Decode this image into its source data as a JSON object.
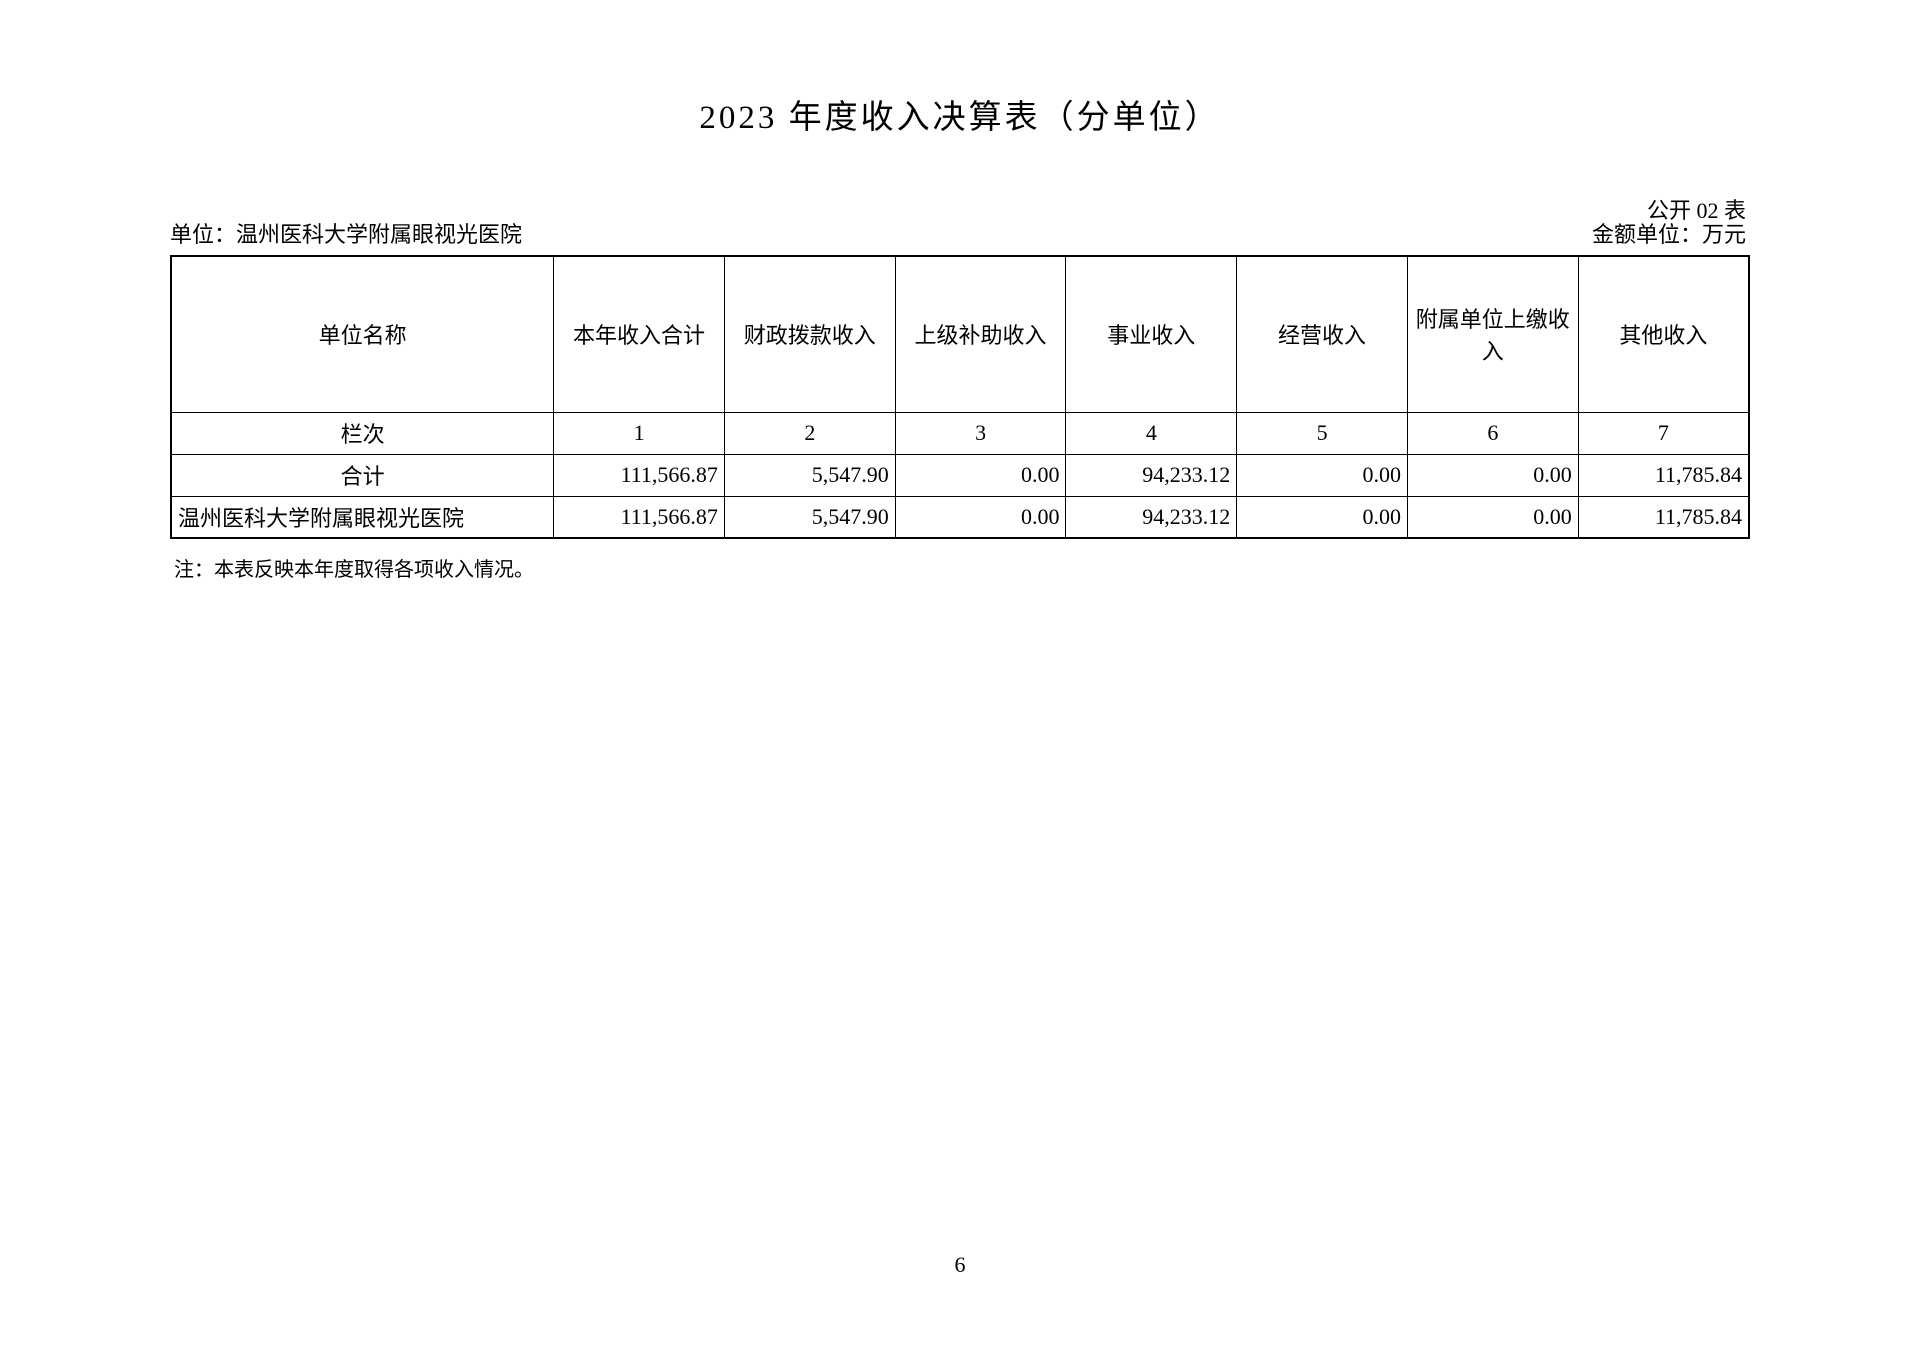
{
  "title": "2023 年度收入决算表（分单位）",
  "table_code": "公开 02 表",
  "unit_label": "单位：",
  "unit_name": "温州医科大学附属眼视光医院",
  "amount_unit": "金额单位：万元",
  "columns": {
    "c0": "单位名称",
    "c1": "本年收入合计",
    "c2": "财政拨款收入",
    "c3": "上级补助收入",
    "c4": "事业收入",
    "c5": "经营收入",
    "c6": "附属单位上缴收入",
    "c7": "其他收入"
  },
  "col_index_label": "栏次",
  "col_index": {
    "i1": "1",
    "i2": "2",
    "i3": "3",
    "i4": "4",
    "i5": "5",
    "i6": "6",
    "i7": "7"
  },
  "total_label": "合计",
  "total": {
    "v1": "111,566.87",
    "v2": "5,547.90",
    "v3": "0.00",
    "v4": "94,233.12",
    "v5": "0.00",
    "v6": "0.00",
    "v7": "11,785.84"
  },
  "row1": {
    "name": "温州医科大学附属眼视光医院",
    "v1": "111,566.87",
    "v2": "5,547.90",
    "v3": "0.00",
    "v4": "94,233.12",
    "v5": "0.00",
    "v6": "0.00",
    "v7": "11,785.84"
  },
  "note": "注：本表反映本年度取得各项收入情况。",
  "page_number": "6"
}
